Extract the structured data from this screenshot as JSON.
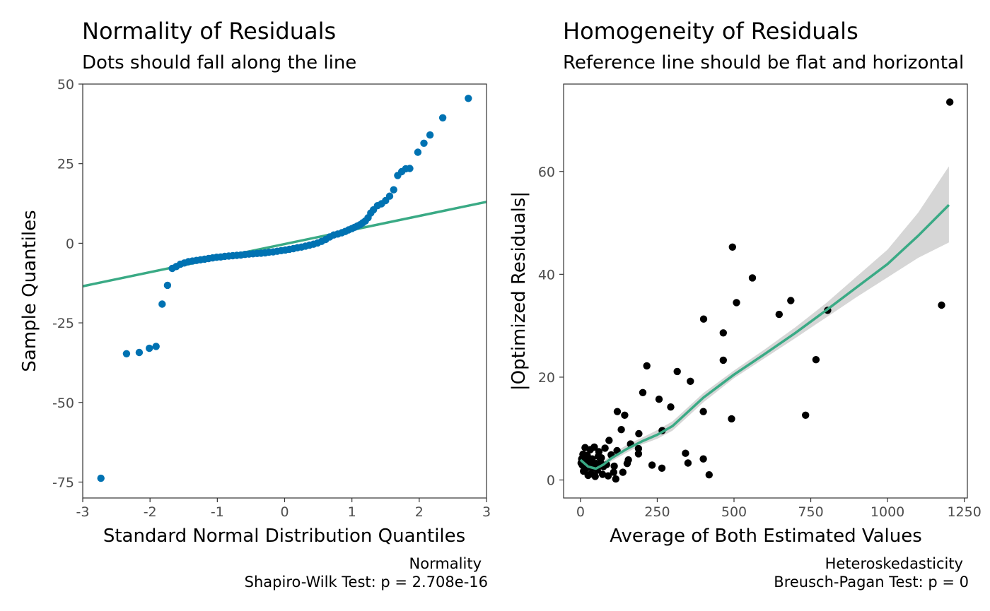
{
  "chart_data": [
    {
      "type": "scatter",
      "title": "Normality of Residuals",
      "subtitle": "Dots should fall along the line",
      "xlabel": "Standard Normal Distribution Quantiles",
      "ylabel": "Sample Quantiles",
      "xlim": [
        -3,
        3
      ],
      "ylim": [
        -80,
        50
      ],
      "x_ticks": [
        -3,
        -2,
        -1,
        0,
        1,
        2,
        3
      ],
      "x_tick_labels": [
        "-3",
        "-2",
        "-1",
        "0",
        "1",
        "2",
        "3"
      ],
      "y_ticks": [
        -75,
        -50,
        -25,
        0,
        25,
        50
      ],
      "y_tick_labels": [
        "-75",
        "-50",
        "-25",
        "0",
        "25",
        "50"
      ],
      "grid": false,
      "caption_lines": [
        "Normality",
        "Shapiro-Wilk Test: p = 2.708e-16"
      ],
      "point_color": "#0072B2",
      "line_color": "#3aaa85",
      "reference_line": {
        "x": [
          -3,
          3
        ],
        "y": [
          -13.5,
          13.0
        ]
      },
      "points": [
        [
          -2.73,
          -73.8
        ],
        [
          -2.35,
          -34.7
        ],
        [
          -2.16,
          -34.3
        ],
        [
          -2.01,
          -33.0
        ],
        [
          -1.91,
          -32.4
        ],
        [
          -1.82,
          -19.1
        ],
        [
          -1.74,
          -13.2
        ],
        [
          -1.67,
          -7.9
        ],
        [
          -1.61,
          -7.3
        ],
        [
          -1.55,
          -6.6
        ],
        [
          -1.49,
          -6.2
        ],
        [
          -1.43,
          -5.8
        ],
        [
          -1.37,
          -5.6
        ],
        [
          -1.31,
          -5.4
        ],
        [
          -1.25,
          -5.2
        ],
        [
          -1.19,
          -5.0
        ],
        [
          -1.13,
          -4.8
        ],
        [
          -1.07,
          -4.6
        ],
        [
          -1.01,
          -4.4
        ],
        [
          -0.95,
          -4.3
        ],
        [
          -0.89,
          -4.1
        ],
        [
          -0.83,
          -4.0
        ],
        [
          -0.77,
          -3.9
        ],
        [
          -0.71,
          -3.8
        ],
        [
          -0.65,
          -3.7
        ],
        [
          -0.59,
          -3.5
        ],
        [
          -0.53,
          -3.4
        ],
        [
          -0.47,
          -3.3
        ],
        [
          -0.41,
          -3.2
        ],
        [
          -0.35,
          -3.1
        ],
        [
          -0.29,
          -3.0
        ],
        [
          -0.23,
          -2.8
        ],
        [
          -0.17,
          -2.7
        ],
        [
          -0.11,
          -2.5
        ],
        [
          -0.05,
          -2.3
        ],
        [
          0.01,
          -2.1
        ],
        [
          0.07,
          -1.9
        ],
        [
          0.13,
          -1.7
        ],
        [
          0.19,
          -1.4
        ],
        [
          0.25,
          -1.2
        ],
        [
          0.31,
          -0.9
        ],
        [
          0.37,
          -0.6
        ],
        [
          0.43,
          -0.3
        ],
        [
          0.49,
          0.1
        ],
        [
          0.55,
          0.6
        ],
        [
          0.61,
          1.2
        ],
        [
          0.67,
          2.0
        ],
        [
          0.73,
          2.6
        ],
        [
          0.79,
          2.9
        ],
        [
          0.85,
          3.3
        ],
        [
          0.9,
          3.7
        ],
        [
          0.95,
          4.2
        ],
        [
          1.0,
          4.6
        ],
        [
          1.04,
          5.0
        ],
        [
          1.08,
          5.4
        ],
        [
          1.12,
          5.8
        ],
        [
          1.16,
          6.4
        ],
        [
          1.2,
          7.0
        ],
        [
          1.24,
          8.0
        ],
        [
          1.28,
          9.5
        ],
        [
          1.32,
          10.5
        ],
        [
          1.38,
          11.8
        ],
        [
          1.44,
          12.4
        ],
        [
          1.5,
          13.4
        ],
        [
          1.56,
          14.8
        ],
        [
          1.62,
          16.8
        ],
        [
          1.68,
          21.3
        ],
        [
          1.74,
          22.5
        ],
        [
          1.8,
          23.4
        ],
        [
          1.86,
          23.5
        ],
        [
          1.98,
          28.6
        ],
        [
          2.07,
          31.4
        ],
        [
          2.16,
          34.0
        ],
        [
          2.35,
          39.4
        ],
        [
          2.73,
          45.5
        ]
      ]
    },
    {
      "type": "scatter",
      "title": "Homogeneity of Residuals",
      "subtitle": "Reference line should be flat and horizontal",
      "xlabel": "Average of Both Estimated Values",
      "ylabel": "|Optimized Residuals|",
      "xlim": [
        -55,
        1260
      ],
      "ylim": [
        -3.5,
        77
      ],
      "x_ticks": [
        0,
        250,
        500,
        750,
        1000,
        1250
      ],
      "x_tick_labels": [
        "0",
        "250",
        "500",
        "750",
        "1000",
        "1250"
      ],
      "y_ticks": [
        0,
        20,
        40,
        60
      ],
      "y_tick_labels": [
        "0",
        "20",
        "40",
        "60"
      ],
      "grid": false,
      "caption_lines": [
        "Heteroskedasticity",
        "Breusch-Pagan Test: p = 0"
      ],
      "point_color": "#000000",
      "line_color": "#3aaa85",
      "band_color": "#d6d6d6",
      "smooth_line": {
        "x": [
          0,
          25,
          50,
          75,
          100,
          150,
          200,
          250,
          300,
          400,
          500,
          600,
          700,
          800,
          900,
          1000,
          1100,
          1200
        ],
        "y": [
          3.9,
          2.6,
          2.2,
          3.0,
          4.2,
          6.0,
          7.5,
          8.8,
          10.5,
          16.0,
          20.5,
          24.5,
          28.6,
          33.0,
          37.5,
          42.0,
          47.5,
          53.5
        ],
        "lower": [
          3.1,
          2.0,
          1.8,
          2.5,
          3.6,
          5.3,
          6.9,
          8.0,
          9.6,
          15.1,
          19.8,
          23.7,
          27.6,
          31.6,
          35.6,
          39.4,
          43.2,
          46.2
        ],
        "upper": [
          4.7,
          3.2,
          2.8,
          3.6,
          4.9,
          6.8,
          8.2,
          9.7,
          11.4,
          16.9,
          21.3,
          25.4,
          29.7,
          34.4,
          39.6,
          44.8,
          52.0,
          61.0
        ]
      },
      "points": [
        [
          1203,
          73.5
        ],
        [
          1176,
          34.0
        ],
        [
          805,
          33.0
        ],
        [
          767,
          23.4
        ],
        [
          733,
          12.6
        ],
        [
          685,
          34.9
        ],
        [
          647,
          32.2
        ],
        [
          560,
          39.3
        ],
        [
          508,
          34.5
        ],
        [
          495,
          45.3
        ],
        [
          492,
          11.9
        ],
        [
          465,
          28.6
        ],
        [
          465,
          23.3
        ],
        [
          419,
          1.0
        ],
        [
          401,
          31.3
        ],
        [
          400,
          13.3
        ],
        [
          400,
          4.1
        ],
        [
          358,
          19.2
        ],
        [
          350,
          3.3
        ],
        [
          342,
          5.2
        ],
        [
          315,
          21.1
        ],
        [
          294,
          14.2
        ],
        [
          266,
          9.6
        ],
        [
          265,
          2.3
        ],
        [
          256,
          15.7
        ],
        [
          233,
          2.9
        ],
        [
          216,
          22.2
        ],
        [
          203,
          17.0
        ],
        [
          190,
          9.0
        ],
        [
          189,
          6.1
        ],
        [
          189,
          5.1
        ],
        [
          163,
          7.0
        ],
        [
          156,
          3.9
        ],
        [
          152,
          3.2
        ],
        [
          144,
          12.6
        ],
        [
          138,
          1.5
        ],
        [
          133,
          9.8
        ],
        [
          120,
          13.3
        ],
        [
          119,
          5.7
        ],
        [
          115,
          0.2
        ],
        [
          108,
          1.5
        ],
        [
          100,
          4.9
        ],
        [
          93,
          7.7
        ],
        [
          90,
          0.8
        ],
        [
          85,
          3.0
        ],
        [
          80,
          6.2
        ],
        [
          75,
          2.6
        ],
        [
          72,
          1.1
        ],
        [
          68,
          4.3
        ],
        [
          60,
          5.5
        ],
        [
          55,
          1.9
        ],
        [
          52,
          3.2
        ],
        [
          48,
          0.7
        ],
        [
          45,
          6.4
        ],
        [
          42,
          2.4
        ],
        [
          38,
          4.1
        ],
        [
          35,
          1.2
        ],
        [
          32,
          5.9
        ],
        [
          28,
          3.1
        ],
        [
          25,
          0.9
        ],
        [
          22,
          4.8
        ],
        [
          18,
          2.2
        ],
        [
          15,
          6.3
        ],
        [
          12,
          3.6
        ],
        [
          10,
          1.7
        ],
        [
          8,
          5.0
        ],
        [
          6,
          2.9
        ],
        [
          4,
          4.1
        ],
        [
          2,
          3.3
        ],
        [
          20,
          3.8
        ],
        [
          40,
          2.9
        ],
        [
          65,
          3.4
        ],
        [
          30,
          2.5
        ],
        [
          58,
          4.6
        ],
        [
          110,
          2.7
        ]
      ]
    }
  ]
}
